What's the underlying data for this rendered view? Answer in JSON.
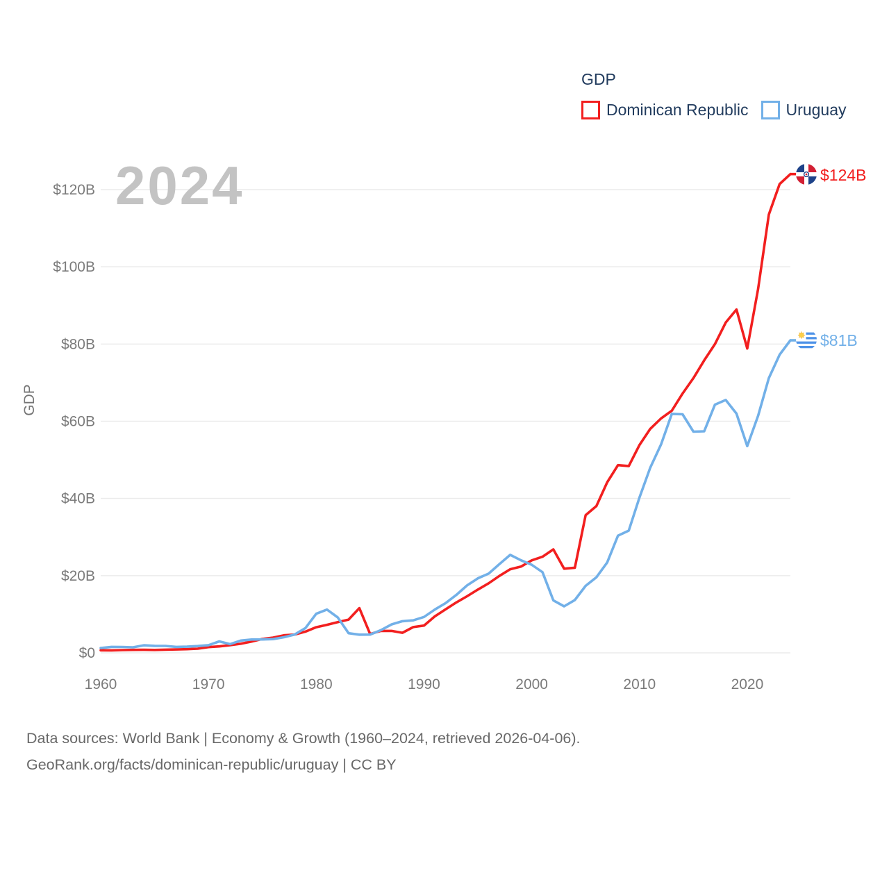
{
  "source": {
    "line1": "Data sources: World Bank | Economy & Growth (1960–2024, retrieved 2026-04-06).",
    "line2": "GeoRank.org/facts/dominican-republic/uruguay | CC BY"
  },
  "colors": {
    "dominican_republic": "#f21f1f",
    "uruguay": "#72b0e8",
    "legend_text": "#223c5e",
    "tick_text": "#7b7b7b",
    "gridline": "#ebebeb",
    "watermark": "#c3c3c3"
  },
  "chart_data": {
    "type": "line",
    "title": "GDP",
    "xlabel": "",
    "ylabel": "GDP",
    "watermark": "2024",
    "grid": "horizontal",
    "legend_position": "top-right",
    "xlim": [
      1960,
      2024
    ],
    "ylim": [
      0,
      129
    ],
    "x_ticks": [
      1960,
      1970,
      1980,
      1990,
      2000,
      2010,
      2020
    ],
    "y_ticks": [
      {
        "value": 0,
        "label": "$0"
      },
      {
        "value": 20,
        "label": "$20B"
      },
      {
        "value": 40,
        "label": "$40B"
      },
      {
        "value": 60,
        "label": "$60B"
      },
      {
        "value": 80,
        "label": "$80B"
      },
      {
        "value": 100,
        "label": "$100B"
      },
      {
        "value": 120,
        "label": "$120B"
      }
    ],
    "years": [
      1960,
      1961,
      1962,
      1963,
      1964,
      1965,
      1966,
      1967,
      1968,
      1969,
      1970,
      1971,
      1972,
      1973,
      1974,
      1975,
      1976,
      1977,
      1978,
      1979,
      1980,
      1981,
      1982,
      1983,
      1984,
      1985,
      1986,
      1987,
      1988,
      1989,
      1990,
      1991,
      1992,
      1993,
      1994,
      1995,
      1996,
      1997,
      1998,
      1999,
      2000,
      2001,
      2002,
      2003,
      2004,
      2005,
      2006,
      2007,
      2008,
      2009,
      2010,
      2011,
      2012,
      2013,
      2014,
      2015,
      2016,
      2017,
      2018,
      2019,
      2020,
      2021,
      2022,
      2023,
      2024
    ],
    "series": [
      {
        "name": "Dominican Republic",
        "color": "#f21f1f",
        "end_label": "$124B",
        "flag": "dominican-republic",
        "unit": "billions USD",
        "values": [
          0.67,
          0.64,
          0.72,
          0.78,
          0.8,
          0.76,
          0.82,
          0.88,
          0.95,
          1.08,
          1.49,
          1.67,
          1.99,
          2.35,
          2.93,
          3.6,
          3.95,
          4.56,
          4.73,
          5.5,
          6.63,
          7.27,
          7.96,
          8.62,
          11.59,
          4.9,
          5.68,
          5.68,
          5.2,
          6.67,
          7.07,
          9.45,
          11.26,
          13.06,
          14.67,
          16.39,
          18.03,
          19.93,
          21.67,
          22.35,
          23.97,
          24.9,
          26.8,
          21.8,
          22.05,
          35.65,
          38.03,
          44.17,
          48.63,
          48.38,
          53.86,
          58.03,
          60.72,
          62.73,
          67.18,
          71.17,
          75.76,
          79.99,
          85.56,
          88.94,
          78.84,
          94.24,
          113.54,
          121.44,
          124.02
        ]
      },
      {
        "name": "Uruguay",
        "color": "#72b0e8",
        "end_label": "$81B",
        "flag": "uruguay",
        "unit": "billions USD",
        "values": [
          1.24,
          1.55,
          1.53,
          1.44,
          1.97,
          1.81,
          1.8,
          1.55,
          1.6,
          1.76,
          1.99,
          2.96,
          2.26,
          3.18,
          3.46,
          3.47,
          3.57,
          4.04,
          4.75,
          6.43,
          10.13,
          11.2,
          9.18,
          5.1,
          4.72,
          4.73,
          5.88,
          7.37,
          8.21,
          8.42,
          9.3,
          11.21,
          12.88,
          15.0,
          17.47,
          19.3,
          20.52,
          23.0,
          25.39,
          23.98,
          22.82,
          20.9,
          13.61,
          12.05,
          13.69,
          17.36,
          19.58,
          23.41,
          30.37,
          31.66,
          40.28,
          48.0,
          54.0,
          61.9,
          61.8,
          57.3,
          57.4,
          64.3,
          65.5,
          61.98,
          53.56,
          61.41,
          71.18,
          77.24,
          80.96
        ]
      }
    ]
  }
}
